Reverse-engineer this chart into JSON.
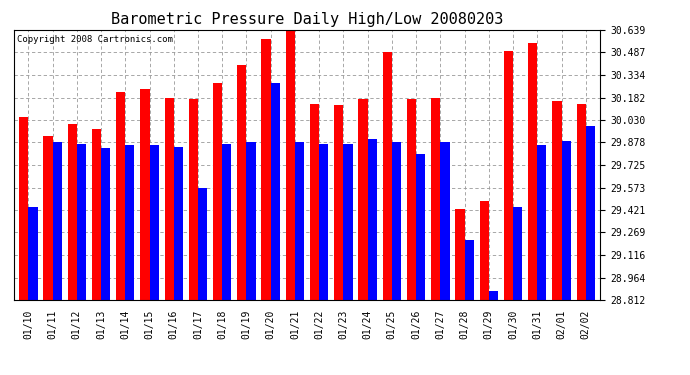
{
  "title": "Barometric Pressure Daily High/Low 20080203",
  "copyright": "Copyright 2008 Cartronics.com",
  "dates": [
    "01/10",
    "01/11",
    "01/12",
    "01/13",
    "01/14",
    "01/15",
    "01/16",
    "01/17",
    "01/18",
    "01/19",
    "01/20",
    "01/21",
    "01/22",
    "01/23",
    "01/24",
    "01/25",
    "01/26",
    "01/27",
    "01/28",
    "01/29",
    "01/30",
    "01/31",
    "02/01",
    "02/02"
  ],
  "highs": [
    30.05,
    29.92,
    30.0,
    29.97,
    30.22,
    30.24,
    30.18,
    30.17,
    30.28,
    30.4,
    30.58,
    30.63,
    30.14,
    30.13,
    30.17,
    30.49,
    30.17,
    30.18,
    29.43,
    29.48,
    30.5,
    30.55,
    30.16,
    30.14
  ],
  "lows": [
    29.44,
    29.88,
    29.87,
    29.84,
    29.86,
    29.86,
    29.85,
    29.57,
    29.87,
    29.88,
    30.28,
    29.88,
    29.87,
    29.87,
    29.9,
    29.88,
    29.8,
    29.88,
    29.22,
    28.87,
    29.44,
    29.86,
    29.89,
    29.99
  ],
  "high_color": "#ff0000",
  "low_color": "#0000ff",
  "bg_color": "#ffffff",
  "plot_bg_color": "#ffffff",
  "grid_color": "#999999",
  "yticks": [
    28.812,
    28.964,
    29.116,
    29.269,
    29.421,
    29.573,
    29.725,
    29.878,
    30.03,
    30.182,
    30.334,
    30.487,
    30.639
  ],
  "ymin": 28.812,
  "ymax": 30.639,
  "bar_width": 0.38,
  "title_fontsize": 11,
  "tick_fontsize": 7,
  "copyright_fontsize": 6.5
}
